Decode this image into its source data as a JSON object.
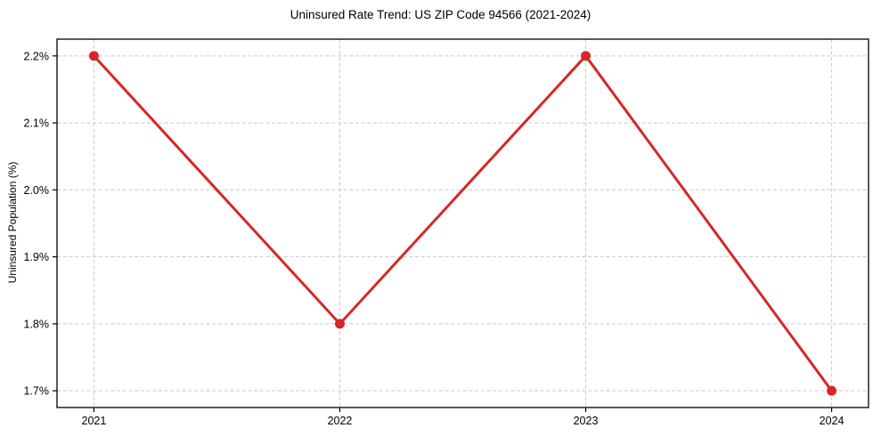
{
  "chart_data": {
    "type": "line",
    "title": "Uninsured Rate Trend: US ZIP Code 94566 (2021-2024)",
    "xlabel": "",
    "ylabel": "Uninsured Population (%)",
    "x": [
      2021,
      2022,
      2023,
      2024
    ],
    "x_tick_labels": [
      "2021",
      "2022",
      "2023",
      "2024"
    ],
    "values": [
      2.2,
      1.8,
      2.2,
      1.7
    ],
    "yticks": [
      1.7,
      1.8,
      1.9,
      2.0,
      2.1,
      2.2
    ],
    "y_tick_labels": [
      "1.7%",
      "1.8%",
      "1.9%",
      "2.0%",
      "2.1%",
      "2.2%"
    ],
    "xlim": [
      2020.85,
      2024.15
    ],
    "ylim": [
      1.675,
      2.225
    ],
    "grid": "dashed-both-axes",
    "legend": "none",
    "marker": "circle",
    "colors": {
      "line": "#d62728",
      "grid": "#c9c9c9",
      "frame": "#000000",
      "text": "#000000",
      "background": "#ffffff"
    }
  }
}
